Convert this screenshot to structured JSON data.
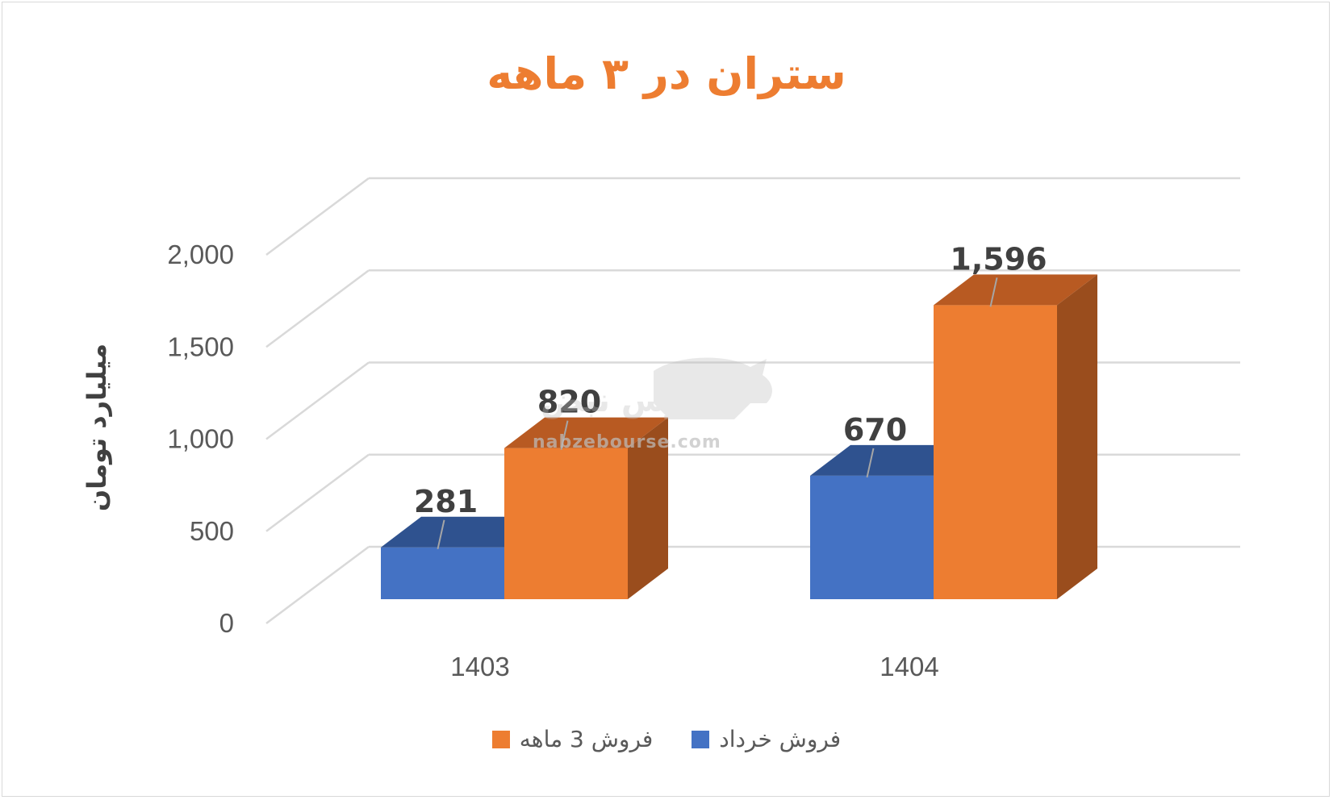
{
  "chart_data": {
    "type": "bar",
    "title": "ستران در ۳ ماهه",
    "ylabel": "میلیارد تومان",
    "xlabel": "",
    "categories": [
      "1403",
      "1404"
    ],
    "series": [
      {
        "name": "فروش خرداد",
        "values": [
          281,
          670
        ],
        "color": "#4472c4",
        "side_color": "#2f528f",
        "top_color": "#2f528f"
      },
      {
        "name": "فروش 3  ماهه",
        "values": [
          820,
          1596
        ],
        "color": "#ed7d31",
        "side_color": "#9a4d1d",
        "top_color": "#b85a22"
      }
    ],
    "data_labels": [
      [
        "281",
        "670"
      ],
      [
        "820",
        "1,596"
      ]
    ],
    "ylim": [
      0,
      2000
    ],
    "yticks": [
      0,
      500,
      1000,
      1500,
      2000
    ],
    "ytick_labels": [
      "0",
      "500",
      "1,000",
      "1,500",
      "2,000"
    ],
    "grid": true,
    "legend_position": "bottom",
    "style": "3d-column"
  },
  "watermark": {
    "text": "nabzebourse.com",
    "logo": "بورس نبض",
    "icon": "bull-icon"
  }
}
